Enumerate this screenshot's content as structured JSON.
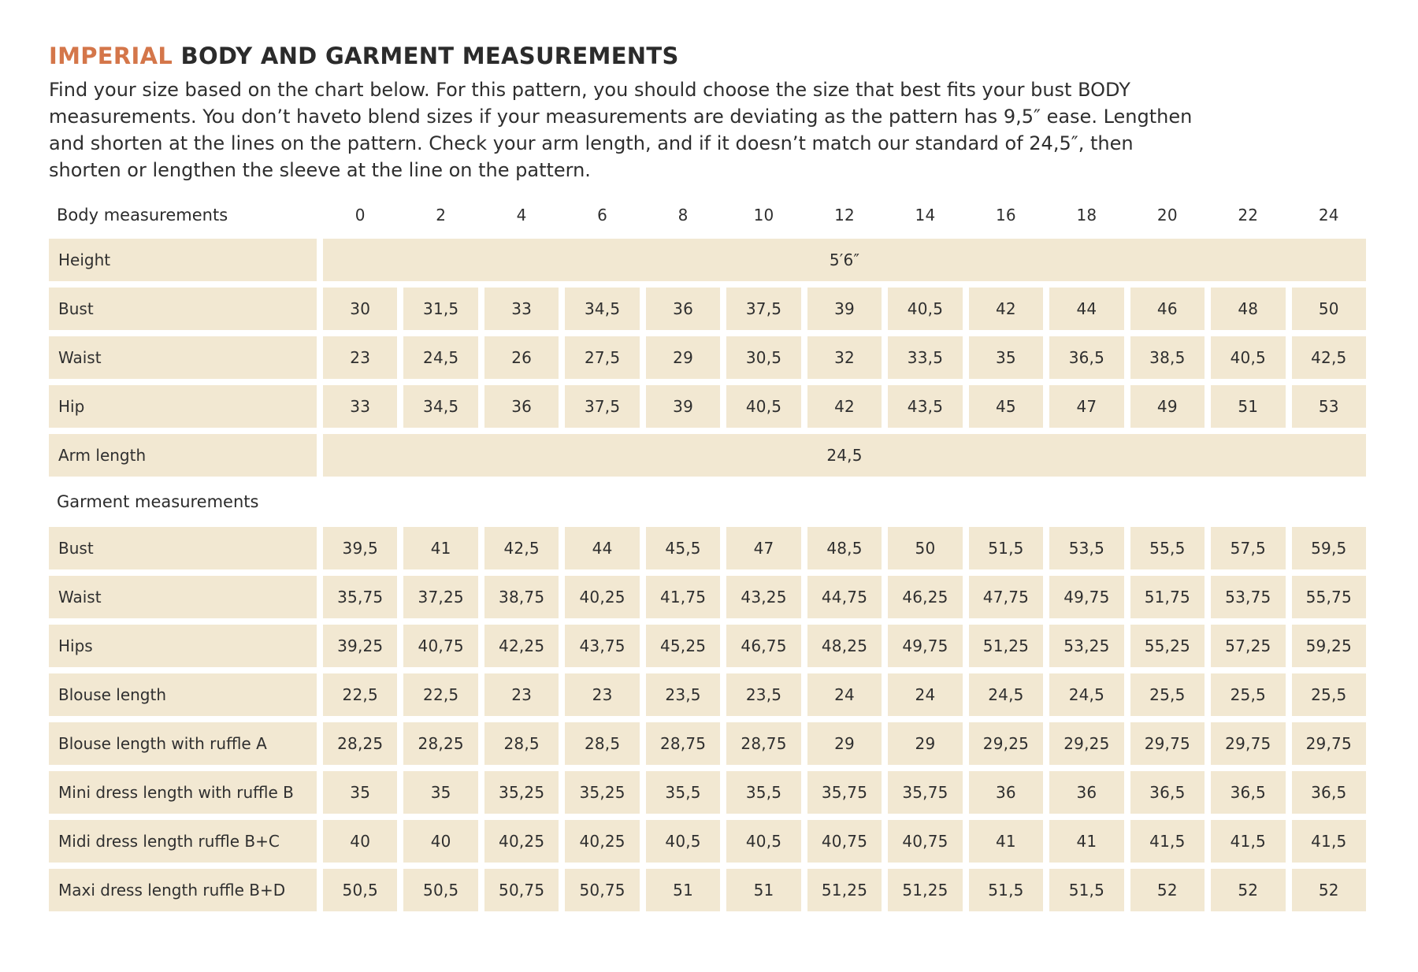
{
  "title": {
    "highlight": "IMPERIAL",
    "rest": " BODY AND GARMENT MEASUREMENTS"
  },
  "intro_lines": [
    "Find your size based on the chart below. For this pattern, you should choose the size that best fits your bust BODY",
    "measurements. You don’t haveto blend sizes if your measurements are deviating as the pattern has 9,5″ ease. Lengthen",
    "and shorten at the lines on the pattern. Check your arm length, and if it doesn’t match our standard of 24,5″, then",
    "shorten or lengthen the sleeve at the line on the pattern."
  ],
  "sizes": [
    "0",
    "2",
    "4",
    "6",
    "8",
    "10",
    "12",
    "14",
    "16",
    "18",
    "20",
    "22",
    "24"
  ],
  "accent_color": "#d4764a",
  "cell_color": "#f2e8d2",
  "body_section": {
    "header": "Body measurements",
    "rows": [
      {
        "label": "Height",
        "span": "5′6″"
      },
      {
        "label": "Bust",
        "values": [
          "30",
          "31,5",
          "33",
          "34,5",
          "36",
          "37,5",
          "39",
          "40,5",
          "42",
          "44",
          "46",
          "48",
          "50"
        ]
      },
      {
        "label": "Waist",
        "values": [
          "23",
          "24,5",
          "26",
          "27,5",
          "29",
          "30,5",
          "32",
          "33,5",
          "35",
          "36,5",
          "38,5",
          "40,5",
          "42,5"
        ]
      },
      {
        "label": "Hip",
        "values": [
          "33",
          "34,5",
          "36",
          "37,5",
          "39",
          "40,5",
          "42",
          "43,5",
          "45",
          "47",
          "49",
          "51",
          "53"
        ]
      },
      {
        "label": "Arm length",
        "span": "24,5"
      }
    ]
  },
  "garment_section": {
    "header": "Garment measurements",
    "rows": [
      {
        "label": "Bust",
        "values": [
          "39,5",
          "41",
          "42,5",
          "44",
          "45,5",
          "47",
          "48,5",
          "50",
          "51,5",
          "53,5",
          "55,5",
          "57,5",
          "59,5"
        ]
      },
      {
        "label": "Waist",
        "values": [
          "35,75",
          "37,25",
          "38,75",
          "40,25",
          "41,75",
          "43,25",
          "44,75",
          "46,25",
          "47,75",
          "49,75",
          "51,75",
          "53,75",
          "55,75"
        ]
      },
      {
        "label": "Hips",
        "values": [
          "39,25",
          "40,75",
          "42,25",
          "43,75",
          "45,25",
          "46,75",
          "48,25",
          "49,75",
          "51,25",
          "53,25",
          "55,25",
          "57,25",
          "59,25"
        ]
      },
      {
        "label": "Blouse length",
        "values": [
          "22,5",
          "22,5",
          "23",
          "23",
          "23,5",
          "23,5",
          "24",
          "24",
          "24,5",
          "24,5",
          "25,5",
          "25,5",
          "25,5"
        ]
      },
      {
        "label": "Blouse length with ruffle A",
        "values": [
          "28,25",
          "28,25",
          "28,5",
          "28,5",
          "28,75",
          "28,75",
          "29",
          "29",
          "29,25",
          "29,25",
          "29,75",
          "29,75",
          "29,75"
        ]
      },
      {
        "label": "Mini dress length with ruffle B",
        "values": [
          "35",
          "35",
          "35,25",
          "35,25",
          "35,5",
          "35,5",
          "35,75",
          "35,75",
          "36",
          "36",
          "36,5",
          "36,5",
          "36,5"
        ]
      },
      {
        "label": "Midi dress length ruffle B+C",
        "values": [
          "40",
          "40",
          "40,25",
          "40,25",
          "40,5",
          "40,5",
          "40,75",
          "40,75",
          "41",
          "41",
          "41,5",
          "41,5",
          "41,5"
        ]
      },
      {
        "label": "Maxi dress length ruffle B+D",
        "values": [
          "50,5",
          "50,5",
          "50,75",
          "50,75",
          "51",
          "51",
          "51,25",
          "51,25",
          "51,5",
          "51,5",
          "52",
          "52",
          "52"
        ]
      }
    ]
  }
}
